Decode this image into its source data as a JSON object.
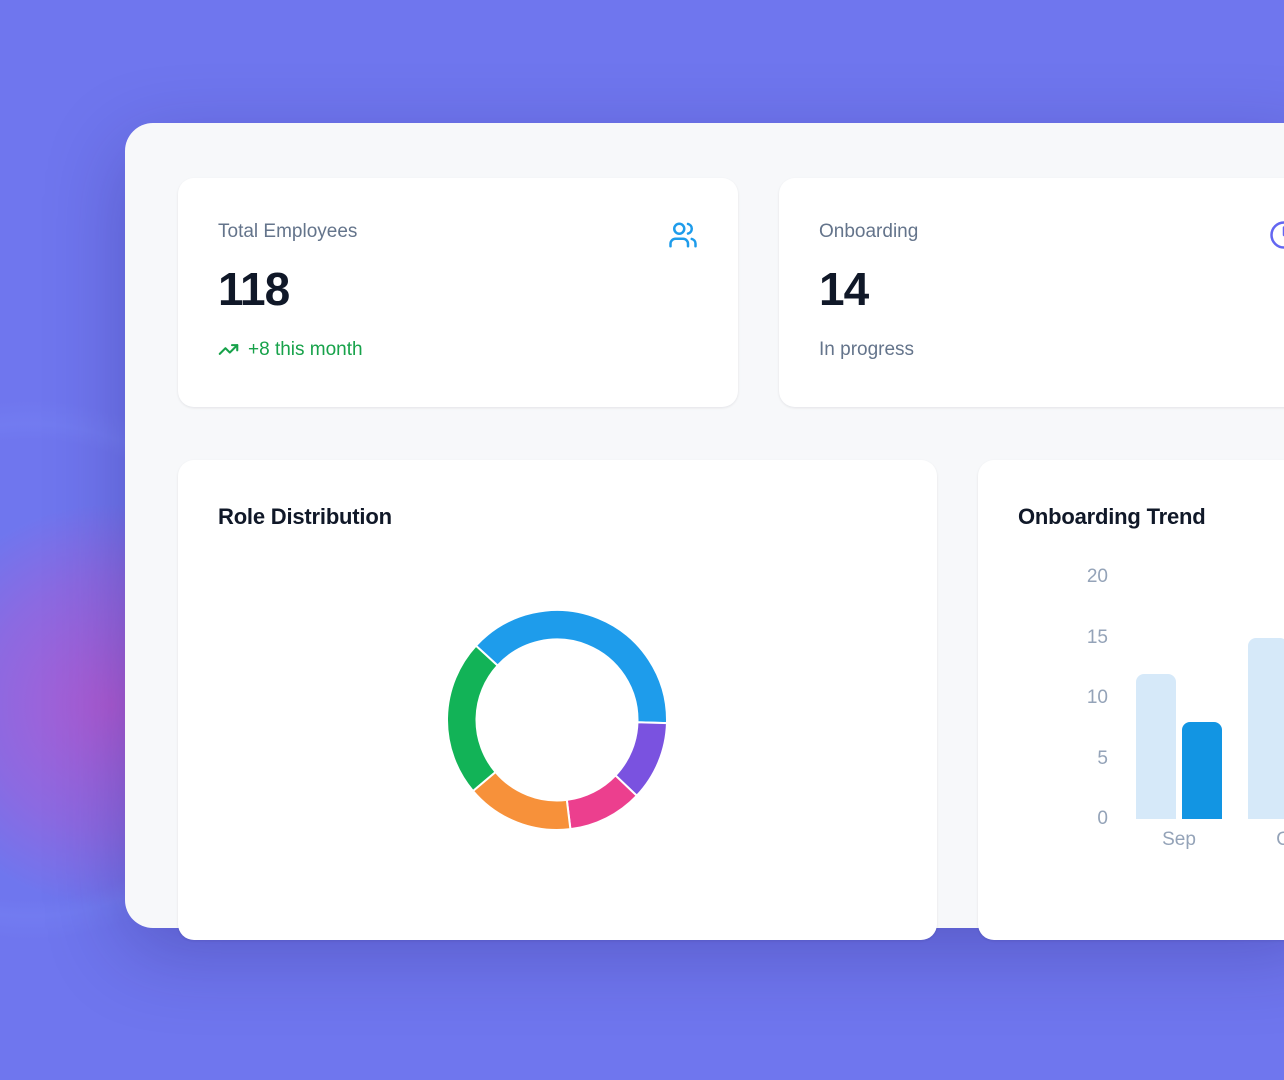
{
  "theme": {
    "background_color": "#6f76ee",
    "glow_color": "#e046bc",
    "panel_color": "#f7f8fa",
    "card_color": "#ffffff",
    "heading_color": "#101828",
    "muted_text_color": "#64748b",
    "axis_text_color": "#94a3b8"
  },
  "stat_cards": [
    {
      "label": "Total Employees",
      "value": "118",
      "trend": "+8 this month",
      "trend_color": "#17a24a",
      "icon": "users-icon",
      "icon_color": "#1e9ceb"
    },
    {
      "label": "Onboarding",
      "value": "14",
      "subtitle": "In progress",
      "icon": "clock-icon",
      "icon_color": "#6366f1"
    }
  ],
  "chart_data": [
    {
      "type": "pie",
      "style": "donut",
      "title": "Role Distribution",
      "legend_position": "none",
      "segments": [
        {
          "name": "blue",
          "color": "#1e9ceb",
          "percent": 38.6,
          "start_angle": -47.5,
          "end_angle": 91.6
        },
        {
          "name": "purple",
          "color": "#7a52e0",
          "percent": 11.6,
          "start_angle": 91.6,
          "end_angle": 133.5
        },
        {
          "name": "pink",
          "color": "#ec3f8e",
          "percent": 11.0,
          "start_angle": 133.5,
          "end_angle": 173.0
        },
        {
          "name": "orange",
          "color": "#f7913a",
          "percent": 15.8,
          "start_angle": 173.0,
          "end_angle": 229.8
        },
        {
          "name": "green",
          "color": "#12b357",
          "percent": 23.0,
          "start_angle": 229.8,
          "end_angle": 312.5
        }
      ]
    },
    {
      "type": "bar",
      "title": "Onboarding Trend",
      "categories": [
        "Sep",
        "Oct"
      ],
      "series": [
        {
          "name": "light",
          "color": "#d6e9f9",
          "values": [
            12,
            15
          ]
        },
        {
          "name": "dark",
          "color": "#1295e3",
          "values": [
            8,
            null
          ]
        }
      ],
      "ylim": [
        0,
        20
      ],
      "yticks": [
        0,
        5,
        10,
        15,
        20
      ],
      "grid": false,
      "legend_position": "none",
      "layout_hint": "Oct group partially clipped by right edge of viewport"
    }
  ]
}
